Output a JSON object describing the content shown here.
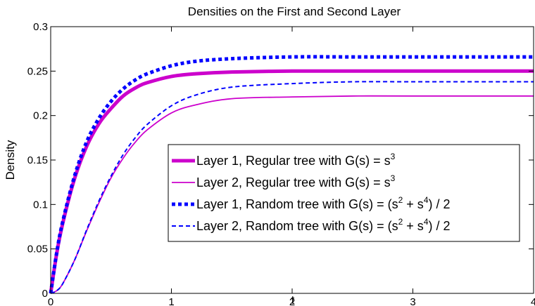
{
  "chart_data": {
    "type": "line",
    "title": "Densities on the First and Second Layer",
    "xlabel": "t",
    "ylabel": "Density",
    "xlim": [
      0,
      4
    ],
    "ylim": [
      0,
      0.3
    ],
    "xticks": [
      "0",
      "1",
      "2",
      "3",
      "4"
    ],
    "yticks": [
      "0",
      "0.05",
      "0.1",
      "0.15",
      "0.2",
      "0.25",
      "0.3"
    ],
    "grid": false,
    "legend_position": "lower-right",
    "series": [
      {
        "name": "Layer 1, Regular tree with G(s) = s",
        "name_sup": "3",
        "name_tail": "",
        "color": "#cc00cc",
        "style": "solid-thick",
        "x": [
          0,
          0.05,
          0.1,
          0.2,
          0.3,
          0.4,
          0.5,
          0.6,
          0.7,
          0.8,
          1.0,
          1.2,
          1.5,
          2.0,
          2.5,
          3.0,
          4.0
        ],
        "y": [
          0,
          0.045,
          0.079,
          0.13,
          0.166,
          0.191,
          0.208,
          0.222,
          0.231,
          0.237,
          0.244,
          0.247,
          0.249,
          0.25,
          0.25,
          0.25,
          0.25
        ]
      },
      {
        "name": "Layer 2, Regular tree with G(s) = s",
        "name_sup": "3",
        "name_tail": "",
        "color": "#cc00cc",
        "style": "solid-thin",
        "x": [
          0,
          0.05,
          0.1,
          0.2,
          0.3,
          0.4,
          0.5,
          0.6,
          0.7,
          0.8,
          1.0,
          1.2,
          1.5,
          2.0,
          2.5,
          3.0,
          4.0
        ],
        "y": [
          0,
          0.003,
          0.011,
          0.038,
          0.071,
          0.102,
          0.13,
          0.152,
          0.17,
          0.184,
          0.203,
          0.212,
          0.219,
          0.221,
          0.222,
          0.222,
          0.222
        ]
      },
      {
        "name": "Layer 1, Random tree with G(s) = (s",
        "name_sup": "2",
        "name_mid": " + s",
        "name_sup2": "4",
        "name_tail": ") / 2",
        "color": "#0000ff",
        "style": "dotted-thick",
        "x": [
          0,
          0.05,
          0.1,
          0.2,
          0.3,
          0.4,
          0.5,
          0.6,
          0.7,
          0.8,
          1.0,
          1.2,
          1.5,
          2.0,
          2.5,
          3.0,
          4.0
        ],
        "y": [
          0,
          0.046,
          0.081,
          0.133,
          0.171,
          0.197,
          0.216,
          0.23,
          0.24,
          0.247,
          0.256,
          0.261,
          0.264,
          0.266,
          0.266,
          0.266,
          0.266
        ]
      },
      {
        "name": "Layer 2, Random tree with G(s) = (s",
        "name_sup": "2",
        "name_mid": " + s",
        "name_sup2": "4",
        "name_tail": ") / 2",
        "color": "#0000ff",
        "style": "dashed-thin",
        "x": [
          0,
          0.05,
          0.1,
          0.2,
          0.3,
          0.4,
          0.5,
          0.6,
          0.7,
          0.8,
          1.0,
          1.2,
          1.5,
          2.0,
          2.5,
          3.0,
          4.0
        ],
        "y": [
          0,
          0.003,
          0.011,
          0.038,
          0.072,
          0.104,
          0.132,
          0.156,
          0.175,
          0.19,
          0.211,
          0.223,
          0.232,
          0.236,
          0.238,
          0.238,
          0.238
        ]
      }
    ]
  }
}
